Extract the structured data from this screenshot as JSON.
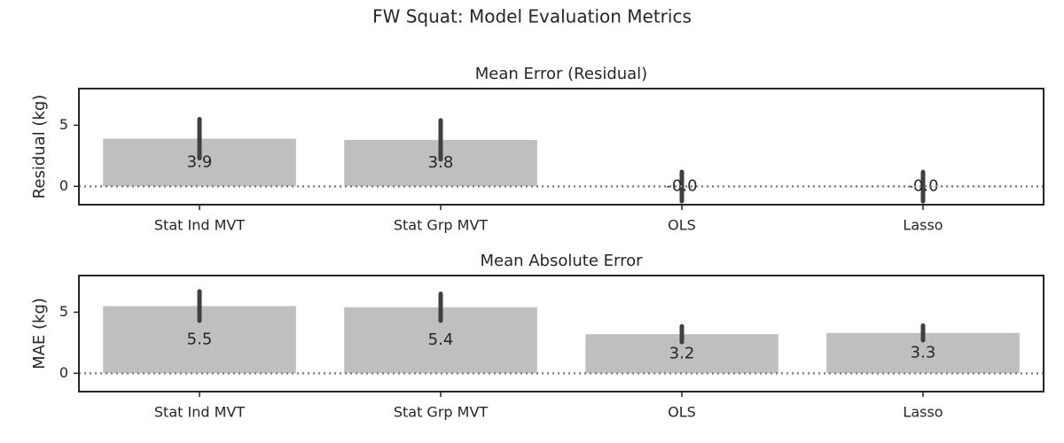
{
  "title": "FW Squat: Model Evaluation Metrics",
  "chart_data": [
    {
      "type": "bar",
      "title": "Mean Error (Residual)",
      "y_label": "Residual (kg)",
      "categories": [
        "Stat Ind MVT",
        "Stat Grp MVT",
        "OLS",
        "Lasso"
      ],
      "values": [
        3.9,
        3.8,
        -0.02,
        -0.03
      ],
      "value_labels": [
        "3.9",
        "3.8",
        "-0.0",
        "-0.0"
      ],
      "errors": [
        1.6,
        1.6,
        1.2,
        1.2
      ],
      "color": "#bfbfbf",
      "error_color": "#404040",
      "ylim": [
        -1.5,
        8
      ],
      "yticks": [
        0,
        5
      ],
      "reference_line": 0
    },
    {
      "type": "bar",
      "title": "Mean Absolute Error",
      "y_label": "MAE (kg)",
      "categories": [
        "Stat Ind MVT",
        "Stat Grp MVT",
        "OLS",
        "Lasso"
      ],
      "values": [
        5.5,
        5.4,
        3.2,
        3.3
      ],
      "errors": [
        1.2,
        1.1,
        0.65,
        0.6
      ],
      "color": "#bfbfbf",
      "error_color": "#404040",
      "ylim": [
        -1.5,
        8
      ],
      "yticks": [
        0,
        5
      ],
      "reference_line": 0
    }
  ]
}
